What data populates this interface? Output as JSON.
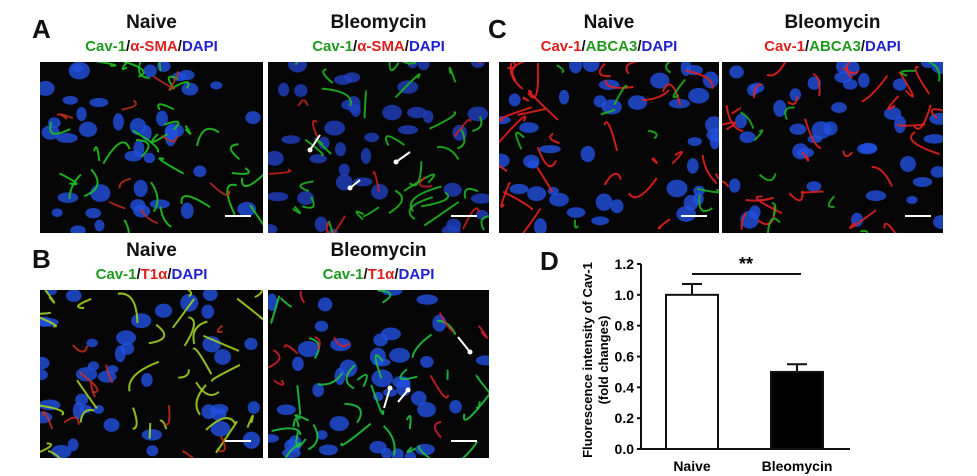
{
  "panels": {
    "A": {
      "label": "A",
      "left": {
        "title": "Naive",
        "stain": [
          "Cav-1",
          "/",
          "α-SMA",
          "/",
          "DAPI"
        ]
      },
      "right": {
        "title": "Bleomycin",
        "stain": [
          "Cav-1",
          "/",
          "α-SMA",
          "/",
          "DAPI"
        ]
      }
    },
    "B": {
      "label": "B",
      "left": {
        "title": "Naive",
        "stain": [
          "Cav-1",
          "/",
          "T1α",
          "/",
          "DAPI"
        ]
      },
      "right": {
        "title": "Bleomycin",
        "stain": [
          "Cav-1",
          "/",
          "T1α",
          "/",
          "DAPI"
        ]
      }
    },
    "C": {
      "label": "C",
      "left": {
        "title": "Naive",
        "stain": [
          "Cav-1",
          "/",
          "ABCA3",
          "/",
          "DAPI"
        ]
      },
      "right": {
        "title": "Bleomycin",
        "stain": [
          "Cav-1",
          "/",
          "ABCA3",
          "/",
          "DAPI"
        ]
      }
    },
    "D": {
      "label": "D"
    }
  },
  "colors": {
    "green": "#1f9a1f",
    "red": "#e02020",
    "blue": "#2020d0"
  },
  "chart_data": {
    "type": "bar",
    "categories": [
      "Naive",
      "Bleomycin"
    ],
    "values": [
      1.0,
      0.5
    ],
    "errors": [
      0.07,
      0.05
    ],
    "bar_fill": [
      "#ffffff",
      "#000000"
    ],
    "ylabel": "Fluorescence intensity of Cav-1 (fold changes)",
    "ylabel_lines": [
      "Fluorescence intensity of Cav-1",
      "(fold changes)"
    ],
    "ylim": [
      0,
      1.2
    ],
    "yticks": [
      "0.0",
      "0.2",
      "0.4",
      "0.6",
      "0.8",
      "1.0",
      "1.2"
    ],
    "significance": "**"
  }
}
